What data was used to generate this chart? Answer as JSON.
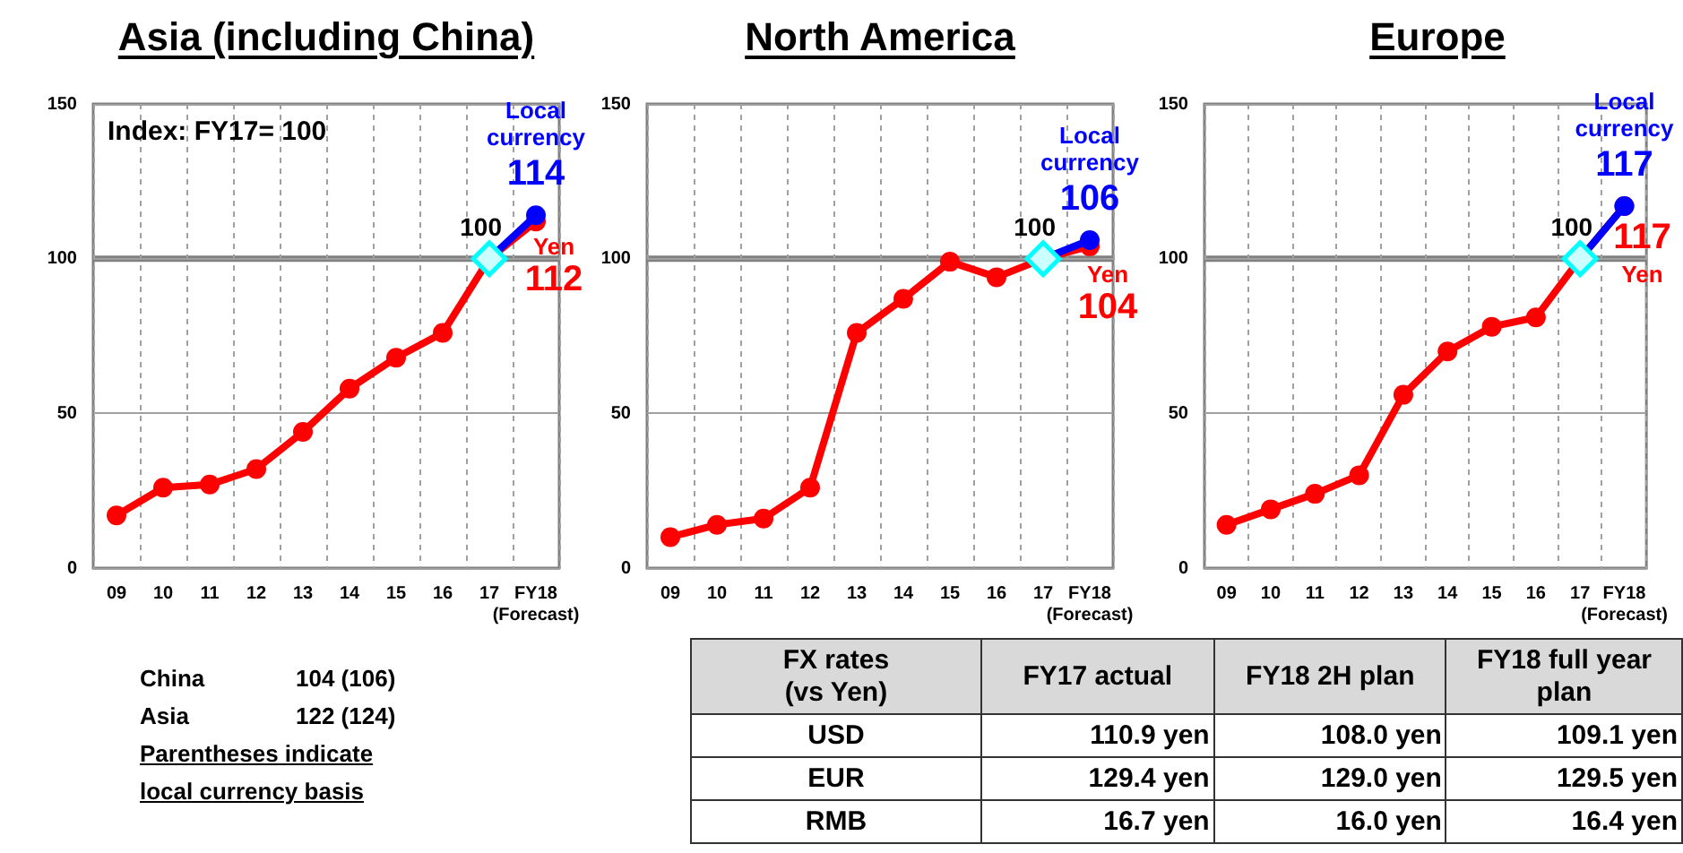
{
  "chart_data": [
    {
      "type": "line",
      "title": "Asia (including China)",
      "categories": [
        "09",
        "10",
        "11",
        "12",
        "13",
        "14",
        "15",
        "16",
        "17",
        "FY18 (Forecast)"
      ],
      "series": [
        {
          "name": "Yen",
          "color": "#ff0000",
          "values": [
            17,
            26,
            27,
            32,
            44,
            58,
            68,
            76,
            100,
            112
          ],
          "value_labels": [
            null,
            null,
            null,
            null,
            null,
            null,
            null,
            null,
            null,
            "112"
          ]
        },
        {
          "name": "Local currency",
          "color": "#0000ff",
          "values": [
            null,
            null,
            null,
            null,
            null,
            null,
            null,
            null,
            100,
            114
          ],
          "value_labels": [
            null,
            null,
            null,
            null,
            null,
            null,
            null,
            null,
            null,
            "114"
          ]
        },
        {
          "type": "scatter",
          "color": "#00ffff",
          "marker": "diamond",
          "x": [
            "17"
          ],
          "values": [
            100
          ],
          "value_labels": [
            "100"
          ]
        }
      ],
      "ylim": [
        0,
        150
      ],
      "yticks": [
        0,
        50,
        100,
        150
      ],
      "grid": true,
      "marker": "circle",
      "ref_lines": [
        {
          "axis": "y",
          "value": 100,
          "color": "#808080"
        }
      ],
      "annotations": [
        "Index: FY17= 100"
      ]
    },
    {
      "type": "line",
      "title": "North America",
      "categories": [
        "09",
        "10",
        "11",
        "12",
        "13",
        "14",
        "15",
        "16",
        "17",
        "FY18 (Forecast)"
      ],
      "series": [
        {
          "name": "Yen",
          "color": "#ff0000",
          "values": [
            10,
            14,
            16,
            26,
            76,
            87,
            99,
            94,
            100,
            104
          ],
          "value_labels": [
            null,
            null,
            null,
            null,
            null,
            null,
            null,
            null,
            null,
            "104"
          ]
        },
        {
          "name": "Local currency",
          "color": "#0000ff",
          "values": [
            null,
            null,
            null,
            null,
            null,
            null,
            null,
            null,
            100,
            106
          ],
          "value_labels": [
            null,
            null,
            null,
            null,
            null,
            null,
            null,
            null,
            null,
            "106"
          ]
        },
        {
          "type": "scatter",
          "color": "#00ffff",
          "marker": "diamond",
          "x": [
            "17"
          ],
          "values": [
            100
          ],
          "value_labels": [
            "100"
          ]
        }
      ],
      "ylim": [
        0,
        150
      ],
      "yticks": [
        0,
        50,
        100,
        150
      ],
      "grid": true,
      "marker": "circle",
      "ref_lines": [
        {
          "axis": "y",
          "value": 100,
          "color": "#808080"
        }
      ]
    },
    {
      "type": "line",
      "title": "Europe",
      "categories": [
        "09",
        "10",
        "11",
        "12",
        "13",
        "14",
        "15",
        "16",
        "17",
        "FY18 (Forecast)"
      ],
      "series": [
        {
          "name": "Yen",
          "color": "#ff0000",
          "values": [
            14,
            19,
            24,
            30,
            56,
            70,
            78,
            81,
            100,
            117
          ],
          "value_labels": [
            null,
            null,
            null,
            null,
            null,
            null,
            null,
            null,
            null,
            "117"
          ]
        },
        {
          "name": "Local currency",
          "color": "#0000ff",
          "values": [
            null,
            null,
            null,
            null,
            null,
            null,
            null,
            null,
            100,
            117
          ],
          "value_labels": [
            null,
            null,
            null,
            null,
            null,
            null,
            null,
            null,
            null,
            "117"
          ]
        },
        {
          "type": "scatter",
          "color": "#00ffff",
          "marker": "diamond",
          "x": [
            "17"
          ],
          "values": [
            100
          ],
          "value_labels": [
            "100"
          ]
        }
      ],
      "ylim": [
        0,
        150
      ],
      "yticks": [
        0,
        50,
        100,
        150
      ],
      "grid": true,
      "marker": "circle",
      "ref_lines": [
        {
          "axis": "y",
          "value": 100,
          "color": "#808080"
        }
      ]
    },
    {
      "type": "other",
      "title": "FX rates (vs Yen)",
      "categories": [
        "FY17 actual",
        "FY18 2H plan",
        "FY18 full year plan"
      ],
      "y_categories": [
        "USD",
        "EUR",
        "RMB"
      ],
      "cell_labels": [
        [
          "110.9 yen",
          "108.0 yen",
          "109.1 yen"
        ],
        [
          "129.4 yen",
          "129.0 yen",
          "129.5 yen"
        ],
        [
          "16.7 yen",
          "16.0 yen",
          "16.4 yen"
        ]
      ],
      "annotations": [
        "China 104 (106)",
        "Asia 122 (124)",
        "Parentheses indicate local currency basis"
      ]
    }
  ]
}
